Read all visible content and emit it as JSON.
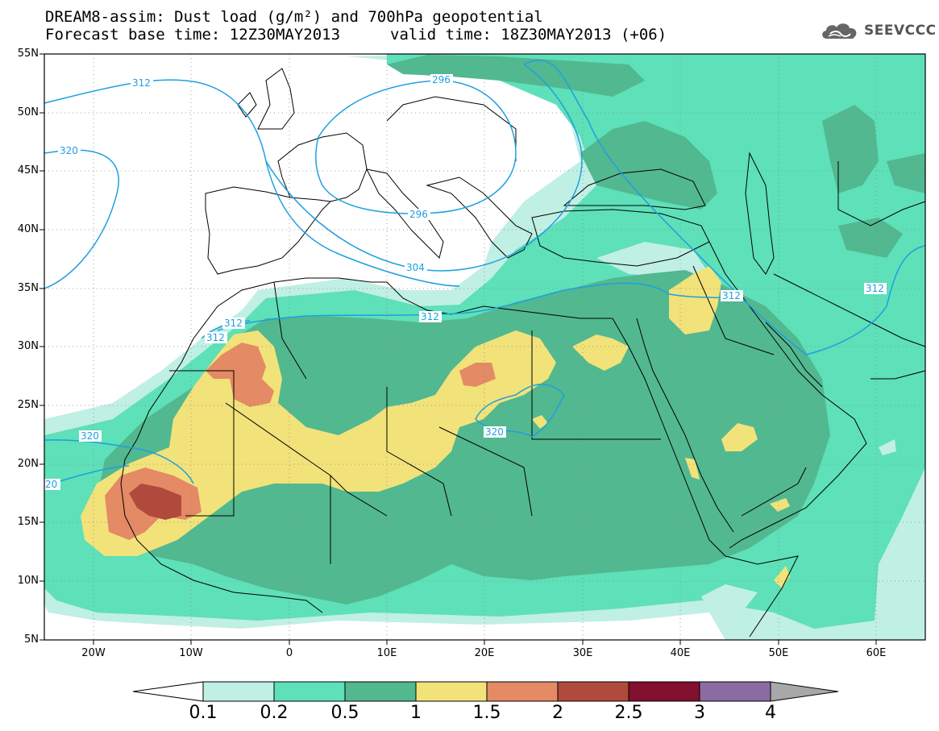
{
  "header": {
    "title_line1": "DREAM8-assim: Dust load (g/m²) and 700hPa geopotential",
    "forecast_base": "Forecast base time: 12Z30MAY2013",
    "valid_time": "valid time: 18Z30MAY2013 (+06)",
    "logo_text": "SEEVCCC",
    "logo_icon": "cloud-icon"
  },
  "map": {
    "lat_labels": [
      "55N",
      "50N",
      "45N",
      "40N",
      "35N",
      "30N",
      "25N",
      "20N",
      "15N",
      "10N",
      "5N"
    ],
    "lon_labels": [
      "20W",
      "10W",
      "0",
      "10E",
      "20E",
      "30E",
      "40E",
      "50E",
      "60E"
    ],
    "lon_range": [
      -25,
      65
    ],
    "lat_range": [
      5,
      55
    ],
    "contour_labels": [
      "312",
      "320",
      "296",
      "296",
      "304",
      "312",
      "312",
      "312",
      "312",
      "312",
      "320",
      "320",
      "20"
    ],
    "colors": {
      "lightcyan": "#c0efe4",
      "green1": "#5ee0b8",
      "green2": "#52b890",
      "yellow": "#f2e27a",
      "orange": "#e48a64",
      "brown": "#b04a3c",
      "darkred": "#82102e",
      "purple": "#8c6ba2",
      "contour": "#1f9fe0"
    }
  },
  "colorbar": {
    "labels": [
      "0.1",
      "0.2",
      "0.5",
      "1",
      "1.5",
      "2",
      "2.5",
      "3",
      "4"
    ],
    "colors": [
      "#c0efe4",
      "#5ee0b8",
      "#52b890",
      "#f2e27a",
      "#e48a64",
      "#b04a3c",
      "#82102e",
      "#8c6ba2"
    ],
    "under_color": "#ffffff",
    "over_color": "#a8a8a8"
  }
}
